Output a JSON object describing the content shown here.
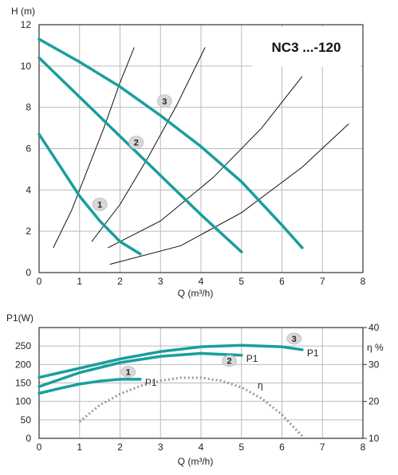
{
  "chart_data": [
    {
      "type": "line",
      "title": "NC3 ...-120",
      "ylabel": "H (m)",
      "xlabel": "Q (m³/h)",
      "xlim": [
        0,
        8
      ],
      "ylim": [
        0,
        12
      ],
      "x_ticks": [
        "0",
        "1",
        "2",
        "3",
        "4",
        "5",
        "6",
        "7",
        "8"
      ],
      "y_ticks": [
        "0",
        "2",
        "4",
        "6",
        "8",
        "10",
        "12"
      ],
      "grid": true,
      "colors": {
        "pump": "#1a9e9e",
        "system": "#111111"
      },
      "series": [
        {
          "name": "1",
          "kind": "pump",
          "x": [
            0,
            0.5,
            1.0,
            1.5,
            2.0,
            2.5
          ],
          "y": [
            6.7,
            5.2,
            3.7,
            2.5,
            1.5,
            0.9
          ]
        },
        {
          "name": "2",
          "kind": "pump",
          "x": [
            0,
            1,
            2,
            3,
            4,
            5
          ],
          "y": [
            10.4,
            8.5,
            6.6,
            4.7,
            2.8,
            1.0
          ]
        },
        {
          "name": "3",
          "kind": "pump",
          "x": [
            0,
            1,
            2,
            3,
            4,
            5,
            6,
            6.5
          ],
          "y": [
            11.3,
            10.2,
            9.0,
            7.6,
            6.1,
            4.4,
            2.3,
            1.2
          ]
        }
      ],
      "system_curves": [
        {
          "x": [
            0.35,
            0.8,
            1.2,
            1.6,
            2.0,
            2.35
          ],
          "y": [
            1.2,
            3.0,
            5.0,
            7.0,
            9.2,
            10.9
          ]
        },
        {
          "x": [
            1.3,
            2.0,
            2.7,
            3.4,
            4.1
          ],
          "y": [
            1.5,
            3.3,
            5.6,
            8.1,
            10.9
          ]
        },
        {
          "x": [
            1.7,
            3.0,
            4.3,
            5.5,
            6.5
          ],
          "y": [
            1.2,
            2.5,
            4.6,
            7.0,
            9.5
          ]
        },
        {
          "x": [
            1.75,
            3.5,
            5.0,
            6.5,
            7.65
          ],
          "y": [
            0.4,
            1.3,
            2.9,
            5.1,
            7.2
          ]
        }
      ],
      "badges": [
        {
          "label": "1",
          "x": 1.5,
          "y": 3.3
        },
        {
          "label": "2",
          "x": 2.4,
          "y": 6.3
        },
        {
          "label": "3",
          "x": 3.1,
          "y": 8.3
        }
      ]
    },
    {
      "type": "line",
      "ylabel": "P1(W)",
      "ylabel_right": "η %",
      "xlabel": "Q (m³/h)",
      "xlim": [
        0,
        8
      ],
      "ylim": [
        0,
        300
      ],
      "ylim_right": [
        10,
        40
      ],
      "x_ticks": [
        "0",
        "1",
        "2",
        "3",
        "4",
        "5",
        "6",
        "7",
        "8"
      ],
      "y_ticks": [
        "0",
        "50",
        "100",
        "150",
        "200",
        "250"
      ],
      "y_ticks_right": [
        "10",
        "20",
        "30",
        "40"
      ],
      "grid": true,
      "colors": {
        "power": "#1a9e9e",
        "efficiency": "#999999"
      },
      "series": [
        {
          "name": "P1",
          "badge": "1",
          "x": [
            0,
            0.5,
            1.0,
            1.5,
            2.0,
            2.5
          ],
          "y": [
            122,
            135,
            147,
            155,
            160,
            160
          ]
        },
        {
          "name": "P1",
          "badge": "2",
          "x": [
            0,
            1,
            2,
            3,
            4,
            5
          ],
          "y": [
            140,
            178,
            205,
            222,
            230,
            225
          ]
        },
        {
          "name": "P1",
          "badge": "3",
          "x": [
            0,
            1,
            2,
            3,
            4,
            5,
            6,
            6.5
          ],
          "y": [
            165,
            190,
            215,
            235,
            248,
            252,
            248,
            240
          ]
        },
        {
          "name": "η",
          "axis": "right",
          "x": [
            1.0,
            1.5,
            2.0,
            2.5,
            3.0,
            3.5,
            4.0,
            4.5,
            5.0,
            5.5,
            6.0,
            6.5
          ],
          "y": [
            14.5,
            19.0,
            22.0,
            24.2,
            25.6,
            26.4,
            26.4,
            25.6,
            23.8,
            20.8,
            16.4,
            10.6
          ]
        }
      ],
      "badges": [
        {
          "label": "1",
          "x": 2.2,
          "y": 180
        },
        {
          "label": "2",
          "x": 4.7,
          "y": 210
        },
        {
          "label": "3",
          "x": 6.3,
          "y": 270
        }
      ],
      "labels": {
        "p1": "P1",
        "eta": "η"
      }
    }
  ]
}
